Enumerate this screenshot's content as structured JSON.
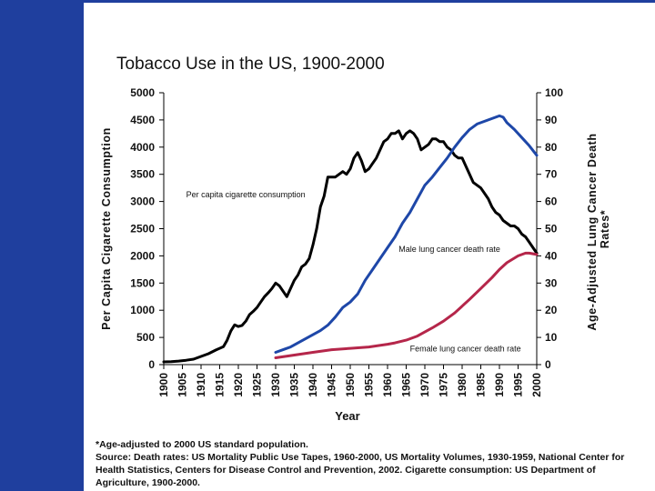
{
  "chart_data": {
    "type": "line",
    "title": "Tobacco Use in the US, 1900-2000",
    "xlabel": "Year",
    "ylabel_left": "Per Capita Cigarette Consumption",
    "ylabel_right_lines": [
      "Age-Adjusted Lung Cancer Death",
      "Rates*"
    ],
    "xlim": [
      1900,
      2000
    ],
    "ylim_left": [
      0,
      5000
    ],
    "ylim_right": [
      0,
      100
    ],
    "x_ticks": [
      "1900",
      "1905",
      "1910",
      "1915",
      "1920",
      "1925",
      "1930",
      "1935",
      "1940",
      "1945",
      "1950",
      "1955",
      "1960",
      "1965",
      "1970",
      "1975",
      "1980",
      "1985",
      "1990",
      "1995",
      "2000"
    ],
    "y_left_ticks": [
      "0",
      "500",
      "1000",
      "1500",
      "2000",
      "2500",
      "3000",
      "3500",
      "4000",
      "4500",
      "5000"
    ],
    "y_right_ticks": [
      "0",
      "10",
      "20",
      "30",
      "40",
      "50",
      "60",
      "70",
      "80",
      "90",
      "100"
    ],
    "series": [
      {
        "name": "Per capita cigarette consumption",
        "axis": "left",
        "color": "#000000",
        "x": [
          1900,
          1902,
          1904,
          1906,
          1908,
          1910,
          1912,
          1914,
          1916,
          1917,
          1918,
          1919,
          1920,
          1921,
          1922,
          1923,
          1924,
          1925,
          1926,
          1927,
          1928,
          1929,
          1930,
          1931,
          1932,
          1933,
          1934,
          1935,
          1936,
          1937,
          1938,
          1939,
          1940,
          1941,
          1942,
          1943,
          1944,
          1945,
          1946,
          1947,
          1948,
          1949,
          1950,
          1951,
          1952,
          1953,
          1954,
          1955,
          1956,
          1957,
          1958,
          1959,
          1960,
          1961,
          1962,
          1963,
          1964,
          1965,
          1966,
          1967,
          1968,
          1969,
          1970,
          1971,
          1972,
          1973,
          1974,
          1975,
          1976,
          1977,
          1978,
          1979,
          1980,
          1981,
          1982,
          1983,
          1984,
          1985,
          1986,
          1987,
          1988,
          1989,
          1990,
          1991,
          1992,
          1993,
          1994,
          1995,
          1996,
          1997,
          1998,
          1999,
          2000
        ],
        "values": [
          50,
          55,
          65,
          80,
          100,
          150,
          200,
          270,
          330,
          450,
          620,
          730,
          700,
          720,
          800,
          920,
          980,
          1050,
          1150,
          1250,
          1320,
          1400,
          1500,
          1450,
          1350,
          1250,
          1400,
          1550,
          1650,
          1800,
          1850,
          1950,
          2200,
          2500,
          2900,
          3100,
          3450,
          3450,
          3450,
          3500,
          3550,
          3500,
          3600,
          3800,
          3900,
          3750,
          3550,
          3600,
          3700,
          3800,
          3950,
          4100,
          4150,
          4250,
          4250,
          4300,
          4150,
          4250,
          4300,
          4250,
          4150,
          3950,
          4000,
          4050,
          4150,
          4150,
          4100,
          4100,
          4000,
          3950,
          3850,
          3800,
          3800,
          3650,
          3500,
          3350,
          3300,
          3250,
          3150,
          3050,
          2900,
          2800,
          2750,
          2650,
          2600,
          2550,
          2550,
          2500,
          2400,
          2350,
          2250,
          2150,
          2050
        ]
      },
      {
        "name": "Male lung cancer death rate",
        "axis": "right",
        "color": "#1e47a8",
        "x": [
          1930,
          1932,
          1934,
          1936,
          1938,
          1940,
          1942,
          1944,
          1946,
          1948,
          1950,
          1952,
          1954,
          1956,
          1958,
          1960,
          1962,
          1964,
          1966,
          1968,
          1970,
          1972,
          1974,
          1976,
          1978,
          1980,
          1982,
          1984,
          1986,
          1988,
          1990,
          1991,
          1992,
          1994,
          1996,
          1998,
          2000
        ],
        "values": [
          4.5,
          5.5,
          6.5,
          8,
          9.5,
          11,
          12.5,
          14.5,
          17.5,
          21,
          23,
          26,
          31,
          35,
          39,
          43,
          47,
          52,
          56,
          61,
          66,
          69,
          72.5,
          76,
          80,
          83.5,
          86.5,
          88.5,
          89.5,
          90.5,
          91.5,
          91,
          89,
          86.5,
          83.5,
          80.5,
          77
        ]
      },
      {
        "name": "Female lung cancer death rate",
        "axis": "right",
        "color": "#b5264a",
        "x": [
          1930,
          1935,
          1940,
          1945,
          1950,
          1955,
          1960,
          1962,
          1965,
          1968,
          1970,
          1972,
          1975,
          1978,
          1980,
          1982,
          1985,
          1988,
          1990,
          1992,
          1995,
          1997,
          1998,
          2000
        ],
        "values": [
          2.5,
          3.5,
          4.5,
          5.5,
          6,
          6.5,
          7.5,
          8,
          9,
          10.5,
          12,
          13.5,
          16,
          19,
          21.5,
          24,
          28,
          32,
          35,
          37.5,
          40,
          41,
          41,
          40.5
        ]
      }
    ],
    "annotations": [
      {
        "text": "Per capita cigarette consumption",
        "x": 1906,
        "y_left": 3080
      },
      {
        "text": "Male lung cancer death rate",
        "x": 1963,
        "y_left": 2070
      },
      {
        "text": "Female lung cancer death rate",
        "x": 1966,
        "y_left": 240
      }
    ],
    "footnote": [
      "*Age-adjusted to 2000 US standard population.",
      "Source: Death rates: US Mortality Public Use Tapes, 1960-2000, US Mortality Volumes, 1930-1959, National Center for Health Statistics, Centers for Disease Control and Prevention, 2002. Cigarette consumption: US Department of Agriculture, 1900-2000."
    ]
  }
}
